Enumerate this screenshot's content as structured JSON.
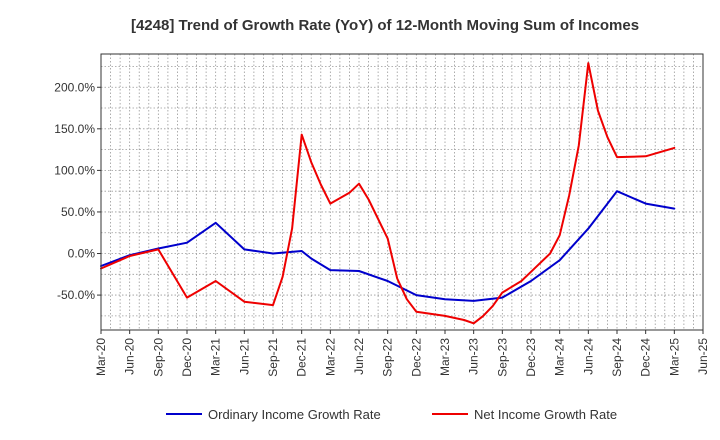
{
  "chart_data": {
    "type": "line",
    "title": "[4248]  Trend of Growth Rate (YoY) of 12-Month Moving Sum of Incomes",
    "xlabel": "",
    "ylabel": "",
    "x_ticks": [
      "Mar-20",
      "Jun-20",
      "Sep-20",
      "Dec-20",
      "Mar-21",
      "Jun-21",
      "Sep-21",
      "Dec-21",
      "Mar-22",
      "Jun-22",
      "Sep-22",
      "Dec-22",
      "Mar-23",
      "Jun-23",
      "Sep-23",
      "Dec-23",
      "Mar-24",
      "Jun-24",
      "Sep-24",
      "Dec-24",
      "Mar-25",
      "Jun-25"
    ],
    "y_ticks": [
      "-50.0%",
      "0.0%",
      "50.0%",
      "100.0%",
      "150.0%",
      "200.0%"
    ],
    "y_tick_values": [
      -50,
      0,
      50,
      100,
      150,
      200
    ],
    "ylim": [
      -92,
      240
    ],
    "grid": true,
    "legend_position": "bottom",
    "series": [
      {
        "name": "Ordinary Income Growth Rate",
        "color": "#0000cc",
        "points": [
          [
            "Mar-20",
            -15
          ],
          [
            "Jun-20",
            -2
          ],
          [
            "Sep-20",
            6
          ],
          [
            "Dec-20",
            13
          ],
          [
            "Mar-21",
            37
          ],
          [
            "Jun-21",
            5
          ],
          [
            "Sep-21",
            0
          ],
          [
            "Dec-21",
            3
          ],
          [
            "Jan-22",
            -6
          ],
          [
            "Mar-22",
            -20
          ],
          [
            "Jun-22",
            -21
          ],
          [
            "Sep-22",
            -33
          ],
          [
            "Dec-22",
            -50
          ],
          [
            "Mar-23",
            -55
          ],
          [
            "Jun-23",
            -57
          ],
          [
            "Sep-23",
            -53
          ],
          [
            "Dec-23",
            -33
          ],
          [
            "Mar-24",
            -8
          ],
          [
            "Jun-24",
            30
          ],
          [
            "Jul-24",
            45
          ],
          [
            "Sep-24",
            75
          ],
          [
            "Dec-24",
            60
          ],
          [
            "Mar-25",
            54
          ]
        ]
      },
      {
        "name": "Net Income Growth Rate",
        "color": "#ee0000",
        "points": [
          [
            "Mar-20",
            -18
          ],
          [
            "Jun-20",
            -3
          ],
          [
            "Sep-20",
            5
          ],
          [
            "Dec-20",
            -53
          ],
          [
            "Mar-21",
            -33
          ],
          [
            "Jun-21",
            -58
          ],
          [
            "Sep-21",
            -62
          ],
          [
            "Oct-21",
            -28
          ],
          [
            "Nov-21",
            30
          ],
          [
            "Dec-21",
            143
          ],
          [
            "Jan-22",
            110
          ],
          [
            "Feb-22",
            83
          ],
          [
            "Mar-22",
            60
          ],
          [
            "May-22",
            73
          ],
          [
            "Jun-22",
            84
          ],
          [
            "Jul-22",
            65
          ],
          [
            "Sep-22",
            18
          ],
          [
            "Oct-22",
            -30
          ],
          [
            "Nov-22",
            -55
          ],
          [
            "Dec-22",
            -70
          ],
          [
            "Mar-23",
            -75
          ],
          [
            "May-23",
            -80
          ],
          [
            "Jun-23",
            -84
          ],
          [
            "Jul-23",
            -75
          ],
          [
            "Aug-23",
            -63
          ],
          [
            "Sep-23",
            -47
          ],
          [
            "Nov-23",
            -33
          ],
          [
            "Dec-23",
            -22
          ],
          [
            "Feb-24",
            0
          ],
          [
            "Mar-24",
            22
          ],
          [
            "Apr-24",
            70
          ],
          [
            "May-24",
            130
          ],
          [
            "Jun-24",
            229
          ],
          [
            "Jul-24",
            172
          ],
          [
            "Aug-24",
            140
          ],
          [
            "Sep-24",
            116
          ],
          [
            "Dec-24",
            117
          ],
          [
            "Mar-25",
            127
          ]
        ]
      }
    ]
  }
}
